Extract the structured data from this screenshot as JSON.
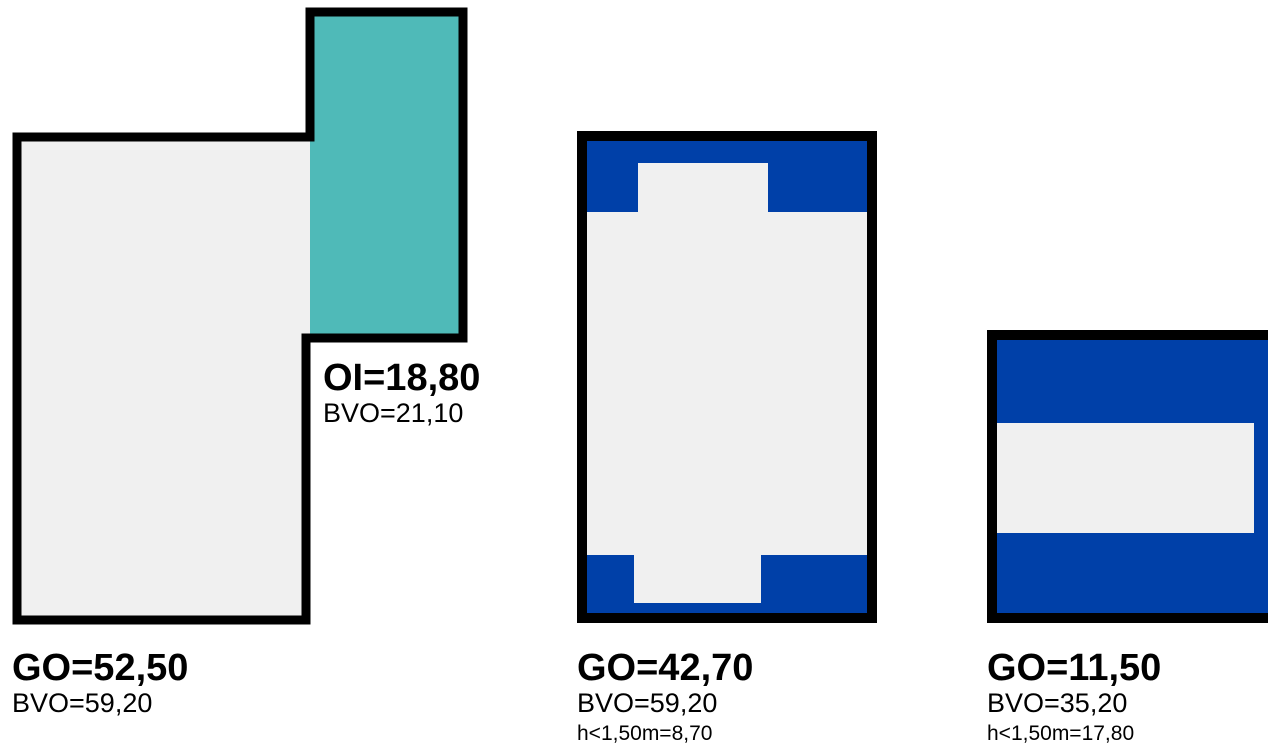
{
  "colors": {
    "outline": "#000000",
    "floor": "#f0f0f0",
    "open_area": "#4fbab8",
    "low_height_area": "#0040a8",
    "background": "#ffffff"
  },
  "units": [
    {
      "main_label": "GO=52,50",
      "bvo_label": "BVO=59,20"
    },
    {
      "main_label": "OI=18,80",
      "bvo_label": "BVO=21,10"
    },
    {
      "main_label": "GO=42,70",
      "bvo_label": "BVO=59,20",
      "low_height_label": "h<1,50m=8,70"
    },
    {
      "main_label": "GO=11,50",
      "bvo_label": "BVO=35,20",
      "low_height_label": "h<1,50m=17,80"
    }
  ]
}
